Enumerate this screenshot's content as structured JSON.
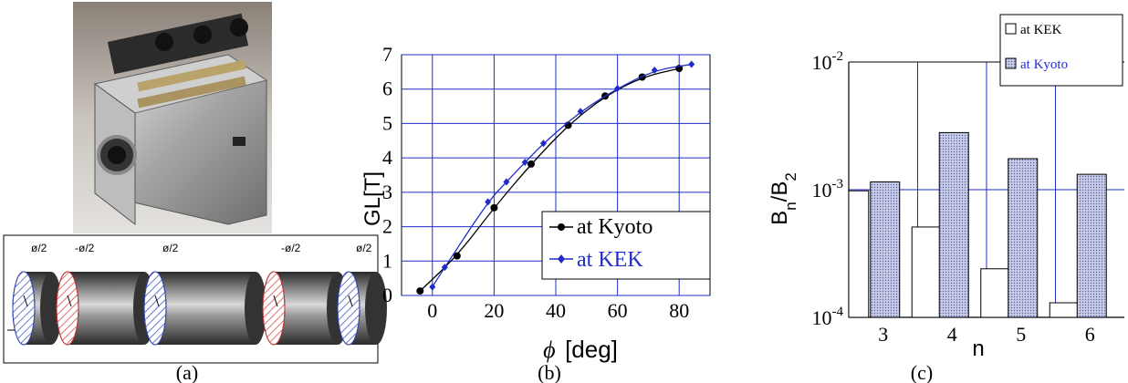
{
  "panel_labels": [
    "(a)",
    "(b)",
    "(c)"
  ],
  "photo": {
    "description_icon": "quadrupole-magnet-photo-icon"
  },
  "schematic": {
    "labels": [
      "ø/2",
      "-ø/2",
      "ø/2",
      "-ø/2",
      "ø/2"
    ],
    "hatch_colors": [
      "#3a4fc0",
      "#d23c3c",
      "#3a4fc0",
      "#d23c3c",
      "#3a4fc0"
    ]
  },
  "chart_data": [
    {
      "type": "line",
      "xlabel_symbol": "ϕ",
      "xlabel": "[deg]",
      "ylabel": "GL[T]",
      "xlim": [
        -10,
        90
      ],
      "ylim": [
        0,
        7
      ],
      "xticks": [
        0,
        20,
        40,
        60,
        80
      ],
      "yticks": [
        0,
        1,
        2,
        3,
        4,
        5,
        6,
        7
      ],
      "grid": true,
      "legend": "bottom-right",
      "series": [
        {
          "name": "at Kyoto",
          "color": "#000000",
          "marker": "circle",
          "x": [
            -4,
            8,
            20,
            32,
            44,
            56,
            68,
            80
          ],
          "y": [
            0.13,
            1.15,
            2.55,
            3.82,
            4.95,
            5.8,
            6.35,
            6.6
          ]
        },
        {
          "name": "at KEK",
          "color": "#1f2cc8",
          "marker": "diamond",
          "x": [
            0,
            4,
            18,
            24,
            30,
            36,
            48,
            60,
            72,
            84
          ],
          "y": [
            0.25,
            0.82,
            2.72,
            3.3,
            3.87,
            4.42,
            5.35,
            6.02,
            6.55,
            6.72
          ]
        }
      ]
    },
    {
      "type": "bar",
      "xlabel": "n",
      "ylabel": "B",
      "ylabel_sub1": "n",
      "ylabel_mid": "/B",
      "ylabel_sub2": "2",
      "yscale": "log",
      "ylim": [
        0.0001,
        0.01
      ],
      "yticks": [
        {
          "base": "10",
          "exp": "-4",
          "v": 0.0001
        },
        {
          "base": "10",
          "exp": "-3",
          "v": 0.001
        },
        {
          "base": "10",
          "exp": "-2",
          "v": 0.01
        }
      ],
      "categories": [
        "3",
        "4",
        "5",
        "6"
      ],
      "legend": "top-right",
      "series": [
        {
          "name": "at KEK",
          "fill": "#ffffff",
          "values": [
            0.00098,
            0.00051,
            0.00024,
            0.00013
          ]
        },
        {
          "name": "at Kyoto",
          "fill": "#c8cce6",
          "values": [
            0.00115,
            0.0028,
            0.00175,
            0.00132
          ]
        }
      ]
    }
  ]
}
